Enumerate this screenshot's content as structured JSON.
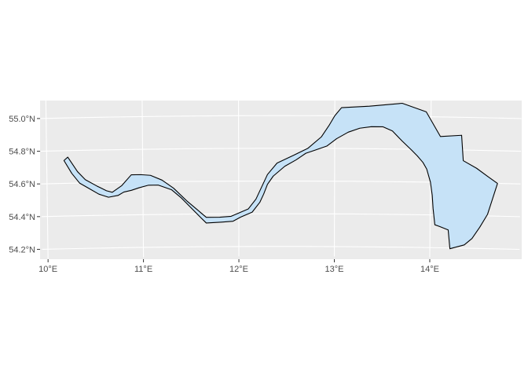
{
  "map": {
    "background_color": "#ebebeb",
    "gridline_color": "#ffffff",
    "tick_color": "#333333",
    "region_fill": "#c6e2f7",
    "region_stroke": "#000000",
    "lon_ticks": [
      10,
      11,
      12,
      13,
      14
    ],
    "lat_ticks": [
      54.2,
      54.4,
      54.6,
      54.8,
      55.0
    ],
    "lon_labels": [
      "10°E",
      "11°E",
      "12°E",
      "13°E",
      "14°E"
    ],
    "lat_labels": [
      "54.2°N",
      "54.4°N",
      "54.6°N",
      "54.8°N",
      "55.0°N"
    ],
    "region_outline": [
      [
        10.18,
        54.74
      ],
      [
        10.22,
        54.76
      ],
      [
        10.32,
        54.67
      ],
      [
        10.4,
        54.62
      ],
      [
        10.52,
        54.58
      ],
      [
        10.62,
        54.55
      ],
      [
        10.68,
        54.54
      ],
      [
        10.78,
        54.58
      ],
      [
        10.88,
        54.645
      ],
      [
        10.98,
        54.645
      ],
      [
        11.08,
        54.64
      ],
      [
        11.2,
        54.61
      ],
      [
        11.32,
        54.56
      ],
      [
        11.46,
        54.48
      ],
      [
        11.56,
        54.43
      ],
      [
        11.66,
        54.38
      ],
      [
        11.8,
        54.38
      ],
      [
        11.92,
        54.385
      ],
      [
        12.1,
        54.43
      ],
      [
        12.18,
        54.49
      ],
      [
        12.3,
        54.64
      ],
      [
        12.4,
        54.71
      ],
      [
        12.58,
        54.76
      ],
      [
        12.72,
        54.8
      ],
      [
        12.86,
        54.87
      ],
      [
        12.94,
        54.94
      ],
      [
        13.0,
        55.0
      ],
      [
        13.07,
        55.05
      ],
      [
        13.36,
        55.06
      ],
      [
        13.7,
        55.08
      ],
      [
        13.95,
        55.03
      ],
      [
        14.1,
        54.88
      ],
      [
        14.32,
        54.89
      ],
      [
        14.34,
        54.735
      ],
      [
        14.48,
        54.69
      ],
      [
        14.6,
        54.64
      ],
      [
        14.7,
        54.6
      ],
      [
        14.6,
        54.41
      ],
      [
        14.52,
        54.33
      ],
      [
        14.44,
        54.26
      ],
      [
        14.36,
        54.22
      ],
      [
        14.21,
        54.195
      ],
      [
        14.19,
        54.31
      ],
      [
        14.1,
        54.33
      ],
      [
        14.05,
        54.34
      ],
      [
        14.03,
        54.44
      ],
      [
        14.02,
        54.52
      ],
      [
        14.0,
        54.6
      ],
      [
        13.96,
        54.68
      ],
      [
        13.92,
        54.72
      ],
      [
        13.86,
        54.76
      ],
      [
        13.8,
        54.795
      ],
      [
        13.7,
        54.85
      ],
      [
        13.6,
        54.91
      ],
      [
        13.5,
        54.935
      ],
      [
        13.38,
        54.935
      ],
      [
        13.26,
        54.925
      ],
      [
        13.14,
        54.9
      ],
      [
        13.02,
        54.86
      ],
      [
        12.92,
        54.815
      ],
      [
        12.8,
        54.79
      ],
      [
        12.7,
        54.77
      ],
      [
        12.6,
        54.73
      ],
      [
        12.48,
        54.69
      ],
      [
        12.36,
        54.63
      ],
      [
        12.3,
        54.58
      ],
      [
        12.26,
        54.52
      ],
      [
        12.22,
        54.47
      ],
      [
        12.14,
        54.41
      ],
      [
        12.02,
        54.38
      ],
      [
        11.94,
        54.355
      ],
      [
        11.82,
        54.35
      ],
      [
        11.66,
        54.345
      ],
      [
        11.6,
        54.38
      ],
      [
        11.5,
        54.44
      ],
      [
        11.4,
        54.5
      ],
      [
        11.3,
        54.55
      ],
      [
        11.16,
        54.58
      ],
      [
        11.06,
        54.58
      ],
      [
        10.96,
        54.565
      ],
      [
        10.88,
        54.55
      ],
      [
        10.8,
        54.54
      ],
      [
        10.74,
        54.52
      ],
      [
        10.64,
        54.51
      ],
      [
        10.54,
        54.53
      ],
      [
        10.44,
        54.565
      ],
      [
        10.34,
        54.6
      ],
      [
        10.26,
        54.66
      ]
    ]
  }
}
